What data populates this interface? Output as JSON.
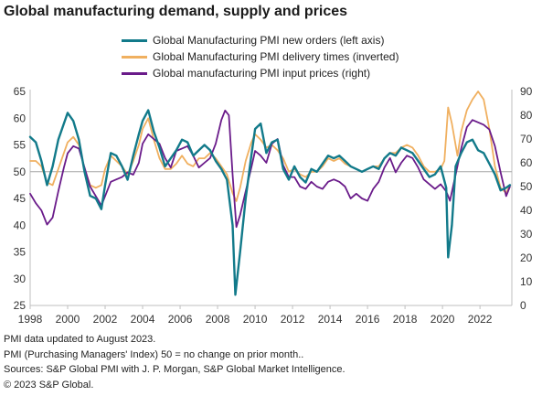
{
  "title": "Global manufacturing demand, supply and prices",
  "chart_data": {
    "type": "line",
    "title": "Global manufacturing demand, supply and prices",
    "left_axis": {
      "ylim": [
        25,
        65
      ],
      "ticks": [
        25,
        30,
        35,
        40,
        45,
        50,
        55,
        60,
        65
      ]
    },
    "right_axis": {
      "ylim": [
        0,
        90
      ],
      "ticks": [
        0,
        10,
        20,
        30,
        40,
        50,
        60,
        70,
        80,
        90
      ]
    },
    "x_axis": {
      "xlim": [
        1998.0,
        2023.7
      ],
      "ticks": [
        "1998",
        "2000",
        "2002",
        "2004",
        "2006",
        "2008",
        "2010",
        "2012",
        "2014",
        "2016",
        "2018",
        "2020",
        "2022"
      ]
    },
    "reference_line": {
      "axis": "left",
      "value": 50
    },
    "legend_position": "top",
    "grid": false,
    "series": [
      {
        "name": "Global Manufacturing PMI new orders (left axis)",
        "axis": "left",
        "color": "#127a8a",
        "x": [
          1998.0,
          1998.3,
          1998.6,
          1998.9,
          1999.2,
          1999.5,
          1999.8,
          2000.0,
          2000.3,
          2000.6,
          2000.9,
          2001.2,
          2001.5,
          2001.8,
          2002.0,
          2002.3,
          2002.6,
          2002.9,
          2003.2,
          2003.5,
          2003.8,
          2004.0,
          2004.3,
          2004.6,
          2004.9,
          2005.2,
          2005.5,
          2005.8,
          2006.1,
          2006.4,
          2006.7,
          2007.0,
          2007.3,
          2007.6,
          2007.9,
          2008.2,
          2008.5,
          2008.8,
          2008.95,
          2009.2,
          2009.5,
          2009.8,
          2010.0,
          2010.3,
          2010.6,
          2010.9,
          2011.2,
          2011.5,
          2011.8,
          2012.1,
          2012.4,
          2012.7,
          2013.0,
          2013.3,
          2013.6,
          2013.9,
          2014.2,
          2014.5,
          2014.8,
          2015.1,
          2015.4,
          2015.7,
          2016.0,
          2016.3,
          2016.6,
          2016.9,
          2017.2,
          2017.5,
          2017.8,
          2018.1,
          2018.4,
          2018.7,
          2019.0,
          2019.3,
          2019.6,
          2019.9,
          2020.2,
          2020.3,
          2020.5,
          2020.7,
          2021.0,
          2021.3,
          2021.6,
          2021.9,
          2022.2,
          2022.5,
          2022.8,
          2023.1,
          2023.4,
          2023.6
        ],
        "values": [
          56.5,
          55.5,
          52.0,
          47.5,
          51.0,
          56.0,
          59.0,
          61.0,
          59.5,
          56.0,
          50.0,
          45.5,
          45.0,
          43.0,
          47.5,
          53.5,
          53.0,
          51.0,
          48.5,
          53.0,
          57.0,
          59.5,
          61.5,
          57.5,
          54.5,
          51.0,
          52.5,
          54.0,
          56.0,
          55.5,
          53.0,
          54.0,
          55.0,
          54.0,
          52.0,
          50.5,
          48.5,
          40.0,
          27.0,
          35.0,
          45.0,
          53.0,
          58.0,
          59.0,
          53.5,
          55.5,
          56.0,
          50.5,
          48.5,
          51.0,
          49.0,
          48.0,
          50.5,
          50.0,
          51.5,
          53.0,
          52.5,
          53.0,
          52.0,
          51.0,
          50.5,
          50.0,
          50.5,
          51.0,
          50.5,
          52.5,
          53.5,
          53.0,
          54.5,
          54.0,
          53.5,
          52.0,
          50.5,
          49.0,
          49.5,
          51.0,
          47.0,
          34.0,
          40.0,
          51.0,
          53.5,
          55.5,
          56.0,
          54.0,
          53.5,
          51.5,
          49.5,
          46.5,
          47.0,
          47.5
        ]
      },
      {
        "name": "Global Manufacturing PMI delivery times (inverted)",
        "axis": "left",
        "color": "#f0b060",
        "x": [
          1998.0,
          1998.3,
          1998.6,
          1998.9,
          1999.2,
          1999.5,
          1999.8,
          2000.0,
          2000.3,
          2000.6,
          2000.9,
          2001.2,
          2001.5,
          2001.8,
          2002.0,
          2002.3,
          2002.6,
          2002.9,
          2003.2,
          2003.5,
          2003.8,
          2004.0,
          2004.3,
          2004.6,
          2004.9,
          2005.2,
          2005.5,
          2005.8,
          2006.1,
          2006.4,
          2006.7,
          2007.0,
          2007.3,
          2007.6,
          2007.9,
          2008.2,
          2008.5,
          2008.8,
          2009.0,
          2009.2,
          2009.5,
          2009.8,
          2010.0,
          2010.3,
          2010.6,
          2010.9,
          2011.2,
          2011.5,
          2011.8,
          2012.1,
          2012.4,
          2012.7,
          2013.0,
          2013.3,
          2013.6,
          2013.9,
          2014.2,
          2014.5,
          2014.8,
          2015.1,
          2015.4,
          2015.7,
          2016.0,
          2016.3,
          2016.6,
          2016.9,
          2017.2,
          2017.5,
          2017.8,
          2018.1,
          2018.4,
          2018.7,
          2019.0,
          2019.3,
          2019.6,
          2019.9,
          2020.1,
          2020.3,
          2020.5,
          2020.8,
          2021.0,
          2021.3,
          2021.6,
          2021.9,
          2022.2,
          2022.5,
          2022.8,
          2023.1,
          2023.4,
          2023.6
        ],
        "values": [
          52.0,
          52.0,
          51.0,
          48.0,
          47.5,
          50.5,
          53.5,
          55.5,
          56.5,
          55.0,
          50.5,
          47.5,
          47.0,
          47.5,
          50.5,
          53.0,
          52.0,
          51.0,
          49.5,
          52.0,
          55.0,
          58.0,
          60.0,
          56.0,
          52.5,
          50.5,
          50.5,
          51.5,
          53.0,
          51.5,
          51.0,
          52.5,
          52.5,
          53.5,
          52.5,
          51.0,
          49.5,
          46.0,
          44.5,
          47.0,
          52.0,
          55.5,
          57.0,
          56.0,
          54.5,
          55.0,
          54.0,
          52.5,
          50.0,
          50.5,
          49.5,
          49.0,
          50.0,
          50.0,
          51.0,
          52.5,
          52.0,
          52.5,
          51.5,
          51.0,
          50.5,
          50.0,
          50.5,
          51.0,
          51.0,
          52.5,
          53.5,
          53.5,
          54.5,
          55.0,
          54.5,
          53.0,
          51.0,
          50.0,
          50.0,
          50.5,
          52.0,
          62.0,
          59.0,
          53.0,
          57.5,
          61.5,
          63.5,
          65.0,
          63.5,
          58.0,
          51.0,
          47.0,
          46.0,
          47.5
        ]
      },
      {
        "name": "Global manufacturing PMI input prices (right)",
        "axis": "right",
        "color": "#6a1b8a",
        "x": [
          1998.0,
          1998.3,
          1998.6,
          1998.9,
          1999.2,
          1999.5,
          1999.8,
          2000.0,
          2000.3,
          2000.6,
          2000.9,
          2001.2,
          2001.5,
          2001.8,
          2002.0,
          2002.3,
          2002.6,
          2002.9,
          2003.2,
          2003.5,
          2003.8,
          2004.0,
          2004.3,
          2004.6,
          2004.9,
          2005.2,
          2005.5,
          2005.8,
          2006.1,
          2006.4,
          2006.7,
          2007.0,
          2007.3,
          2007.6,
          2007.9,
          2008.2,
          2008.4,
          2008.6,
          2008.8,
          2009.0,
          2009.2,
          2009.5,
          2009.8,
          2010.0,
          2010.3,
          2010.6,
          2010.9,
          2011.2,
          2011.5,
          2011.8,
          2012.1,
          2012.4,
          2012.7,
          2013.0,
          2013.3,
          2013.6,
          2013.9,
          2014.2,
          2014.5,
          2014.8,
          2015.1,
          2015.4,
          2015.7,
          2016.0,
          2016.3,
          2016.6,
          2016.9,
          2017.2,
          2017.5,
          2017.8,
          2018.1,
          2018.4,
          2018.7,
          2019.0,
          2019.3,
          2019.6,
          2019.9,
          2020.2,
          2020.4,
          2020.7,
          2021.0,
          2021.3,
          2021.6,
          2021.9,
          2022.2,
          2022.5,
          2022.8,
          2023.1,
          2023.4,
          2023.6
        ],
        "values": [
          47.0,
          43.0,
          40.0,
          34.0,
          37.0,
          48.0,
          58.0,
          64.0,
          67.0,
          66.0,
          58.0,
          50.0,
          46.0,
          42.0,
          46.0,
          52.0,
          53.0,
          54.0,
          56.0,
          55.0,
          60.0,
          68.0,
          72.0,
          70.0,
          68.0,
          62.0,
          58.0,
          65.0,
          66.0,
          67.0,
          63.0,
          58.0,
          60.0,
          62.0,
          68.0,
          78.0,
          82.0,
          80.0,
          55.0,
          33.0,
          38.0,
          48.0,
          58.0,
          65.0,
          63.0,
          60.0,
          68.0,
          70.0,
          59.0,
          54.0,
          54.0,
          50.0,
          49.0,
          52.0,
          50.0,
          49.0,
          52.0,
          53.0,
          52.0,
          50.0,
          45.0,
          47.0,
          45.0,
          44.0,
          49.0,
          52.0,
          58.0,
          62.0,
          56.0,
          60.0,
          63.0,
          62.0,
          58.0,
          53.0,
          51.0,
          49.0,
          51.0,
          48.0,
          44.0,
          55.0,
          66.0,
          75.0,
          78.0,
          77.0,
          76.0,
          74.0,
          67.0,
          56.0,
          46.0,
          50.0
        ]
      }
    ]
  },
  "footnotes": [
    "PMI data updated to August 2023.",
    "PMI (Purchasing Managers' Index) 50 = no change on prior month..",
    "Sources: S&P Global PMI with J. P. Morgan, S&P Global Market Intelligence.",
    "© 2023 S&P Global."
  ]
}
